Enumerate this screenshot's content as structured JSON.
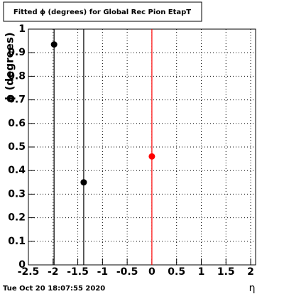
{
  "chart_data": {
    "type": "scatter",
    "title": "Fitted ϕ (degrees) for Global Rec Pion EtapT",
    "y_label": "ϕ (degrees)",
    "x_label": "η",
    "footer": "Tue Oct 20 18:07:55 2020",
    "series": [
      {
        "color": "#000000",
        "x": [
          -1.98,
          -1.38
        ],
        "values": [
          0.935,
          0.35
        ],
        "errors": [
          1,
          1
        ]
      },
      {
        "color": "#ff0000",
        "x": [
          0
        ],
        "values": [
          0.46
        ],
        "errors": [
          1
        ]
      }
    ],
    "xlim": [
      -2.5,
      2.1
    ],
    "xticks": [
      -2.5,
      -2,
      -1.5,
      -1,
      -0.5,
      0,
      0.5,
      1,
      1.5,
      2
    ],
    "ylim": [
      0,
      1
    ],
    "yticks": [
      0,
      0.1,
      0.2,
      0.3,
      0.4,
      0.5,
      0.6,
      0.7,
      0.8,
      0.9,
      1
    ],
    "grid": true
  }
}
